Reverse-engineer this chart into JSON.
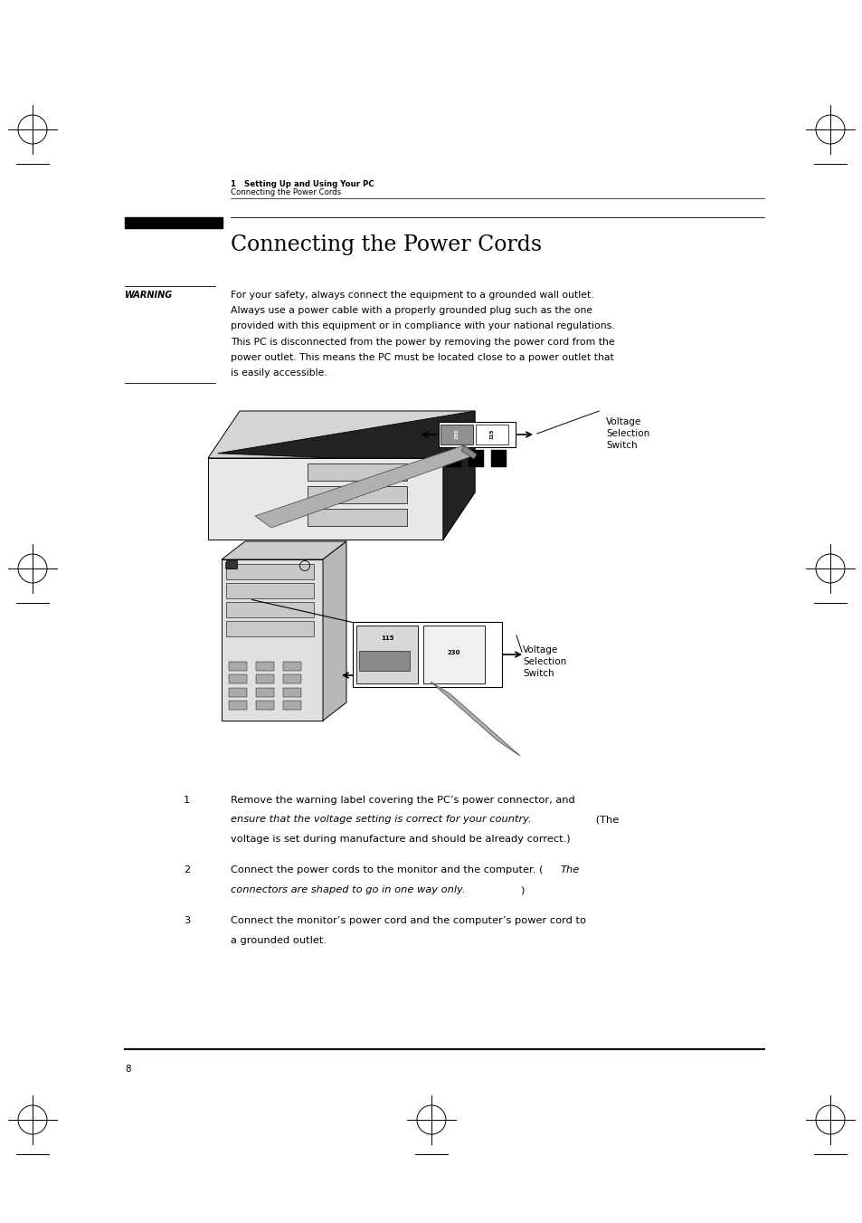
{
  "bg_color": "#ffffff",
  "page_width": 9.54,
  "page_height": 13.51,
  "header_breadcrumb1": "1   Setting Up and Using Your PC",
  "header_breadcrumb2": "Connecting the Power Cords",
  "section_title": "Connecting the Power Cords",
  "warning_label": "WARNING",
  "warning_line1": "For your safety, always connect the equipment to a grounded wall outlet.",
  "warning_line2": "Always use a power cable with a properly grounded plug such as the one",
  "warning_line3": "provided with this equipment or in compliance with your national regulations.",
  "warning_line4": "This PC is disconnected from the power by removing the power cord from the",
  "warning_line5": "power outlet. This means the PC must be located close to a power outlet that",
  "warning_line6": "is easily accessible.",
  "voltage_label1": "Voltage\nSelection\nSwitch",
  "voltage_label2": "Voltage\nSelection\nSwitch",
  "step1_a": "Remove the warning label covering the PC’s power connector, and",
  "step1_b_italic": "ensure that the voltage setting is correct for your country.",
  "step1_b_normal": " (The",
  "step1_c": "voltage is set during manufacture and should be already correct.)",
  "step2_a_normal": "Connect the power cords to the monitor and the computer. (",
  "step2_a_italic": "The",
  "step2_b_italic": "connectors are shaped to go in one way only.",
  "step2_b_normal": ")",
  "step3_a": "Connect the monitor’s power cord and the computer’s power cord to",
  "step3_b": "a grounded outlet.",
  "page_number": "8"
}
